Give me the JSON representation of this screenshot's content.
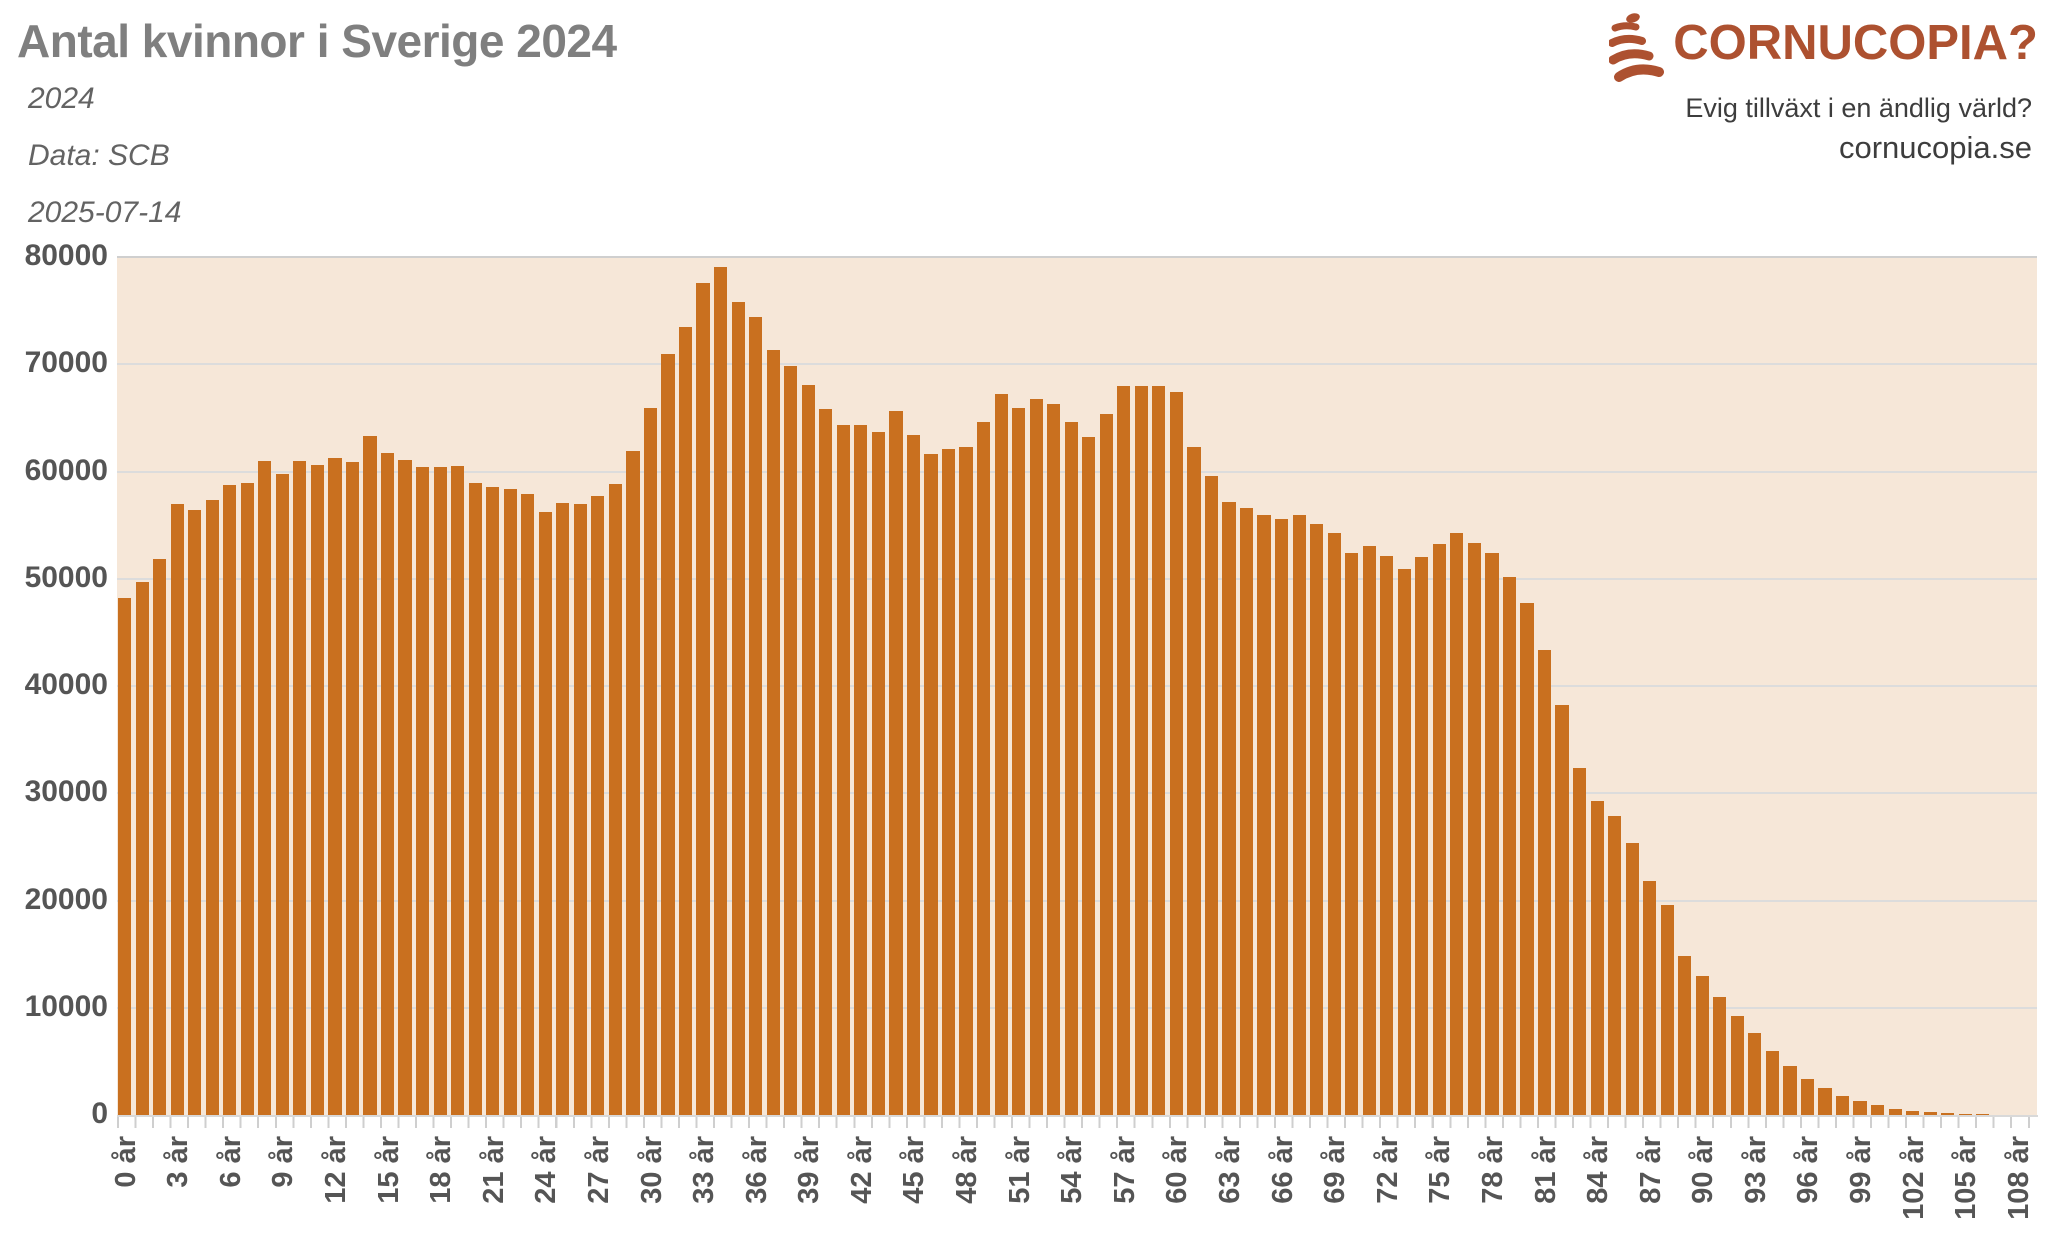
{
  "header": {
    "title": "Antal kvinnor i Sverige 2024",
    "subtitle_year": "2024",
    "subtitle_source": "Data: SCB",
    "subtitle_date": "2025-07-14"
  },
  "branding": {
    "logo_text": "CORNUCOPIA?",
    "tagline": "Evig tillväxt i en ändlig värld?",
    "website": "cornucopia.se",
    "logo_color": "#ad5130",
    "icon": "cornucopia-horn-icon"
  },
  "chart_data": {
    "type": "bar",
    "title": "Antal kvinnor i Sverige 2024",
    "xlabel": "",
    "ylabel": "",
    "ylim": [
      0,
      80000
    ],
    "grid": true,
    "legend": "none",
    "plot_bg": "#f6e7d8",
    "bar_color": "#c9701f",
    "y_ticks": [
      0,
      10000,
      20000,
      30000,
      40000,
      50000,
      60000,
      70000,
      80000
    ],
    "x_tick_step": 3,
    "x_ticks": [
      "0 år",
      "3 år",
      "6 år",
      "9 år",
      "12 år",
      "15 år",
      "18 år",
      "21 år",
      "24 år",
      "27 år",
      "30 år",
      "33 år",
      "36 år",
      "39 år",
      "42 år",
      "45 år",
      "48 år",
      "51 år",
      "54 år",
      "57 år",
      "60 år",
      "63 år",
      "66 år",
      "69 år",
      "72 år",
      "75 år",
      "78 år",
      "81 år",
      "84 år",
      "87 år",
      "90 år",
      "93 år",
      "96 år",
      "99 år",
      "102 år",
      "105 år",
      "108 år"
    ],
    "age_start": 0,
    "values": [
      48200,
      49700,
      51800,
      57000,
      56400,
      57300,
      58700,
      58900,
      61000,
      59800,
      61000,
      60600,
      61300,
      60900,
      63300,
      61700,
      61100,
      60400,
      60400,
      60500,
      58900,
      58600,
      58400,
      57900,
      56200,
      57100,
      57000,
      57700,
      58800,
      61900,
      65900,
      71000,
      73500,
      77600,
      79100,
      75800,
      74400,
      71300,
      69800,
      68100,
      65800,
      64300,
      64300,
      63700,
      65600,
      63400,
      61600,
      62100,
      62300,
      64600,
      67200,
      65900,
      66800,
      66300,
      64600,
      63200,
      65400,
      68000,
      68000,
      68000,
      67400,
      62300,
      59600,
      57200,
      56600,
      55900,
      55600,
      55900,
      55100,
      54300,
      52400,
      53100,
      52100,
      50900,
      52000,
      53200,
      54300,
      53300,
      52400,
      50200,
      47700,
      43400,
      38200,
      32400,
      29300,
      27900,
      25400,
      21800,
      19600,
      14800,
      13000,
      11000,
      9200,
      7600,
      6000,
      4600,
      3400,
      2500,
      1800,
      1300,
      900,
      600,
      400,
      250,
      150,
      90,
      50,
      30,
      20
    ]
  }
}
